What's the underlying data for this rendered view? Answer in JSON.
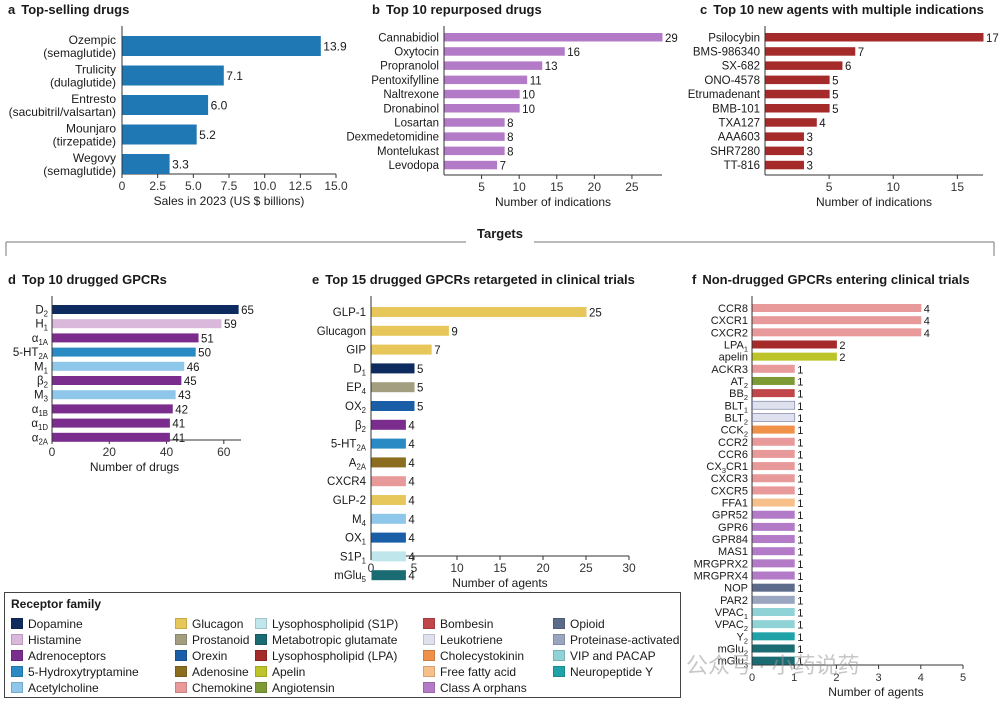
{
  "divider_title": "Targets",
  "chart_data": [
    {
      "id": "a",
      "type": "bar",
      "orientation": "horizontal",
      "letter": "a",
      "title": "Top-selling drugs",
      "categories": [
        [
          "Ozempic",
          "(semaglutide)"
        ],
        [
          "Trulicity",
          "(dulaglutide)"
        ],
        [
          "Entresto",
          "(sacubitril/valsartan)"
        ],
        [
          "Mounjaro",
          "(tirzepatide)"
        ],
        [
          "Wegovy",
          "(semaglutide)"
        ]
      ],
      "values": [
        13.9,
        7.1,
        6.0,
        5.2,
        3.3
      ],
      "value_labels": [
        "13.9",
        "7.1",
        "6.0",
        "5.2",
        "3.3"
      ],
      "colors": [
        "#1f78b4",
        "#1f78b4",
        "#1f78b4",
        "#1f78b4",
        "#1f78b4"
      ],
      "xlabel": "Sales in 2023 (US $ billions)",
      "xlim": [
        0,
        15
      ],
      "xticks": [
        "0",
        "2.5",
        "5.0",
        "7.5",
        "10.0",
        "12.5",
        "15.0"
      ]
    },
    {
      "id": "b",
      "type": "bar",
      "orientation": "horizontal",
      "letter": "b",
      "title": "Top 10 repurposed drugs",
      "categories": [
        [
          "Cannabidiol"
        ],
        [
          "Oxytocin"
        ],
        [
          "Propranolol"
        ],
        [
          "Pentoxifylline"
        ],
        [
          "Naltrexone"
        ],
        [
          "Dronabinol"
        ],
        [
          "Losartan"
        ],
        [
          "Dexmedetomidine"
        ],
        [
          "Montelukast"
        ],
        [
          "Levodopa"
        ]
      ],
      "values": [
        29,
        16,
        13,
        11,
        10,
        10,
        8,
        8,
        8,
        7
      ],
      "value_labels": [
        "29",
        "16",
        "13",
        "11",
        "10",
        "10",
        "8",
        "8",
        "8",
        "7"
      ],
      "colors": [
        "#b37bc7",
        "#b37bc7",
        "#b37bc7",
        "#b37bc7",
        "#b37bc7",
        "#b37bc7",
        "#b37bc7",
        "#b37bc7",
        "#b37bc7",
        "#b37bc7"
      ],
      "xlabel": "Number of indications",
      "xlim": [
        0,
        29
      ],
      "xticks": [
        "5",
        "10",
        "15",
        "20",
        "25"
      ]
    },
    {
      "id": "c",
      "type": "bar",
      "orientation": "horizontal",
      "letter": "c",
      "title": "Top 10 new agents with multiple indications",
      "categories": [
        [
          "Psilocybin"
        ],
        [
          "BMS-986340"
        ],
        [
          "SX-682"
        ],
        [
          "ONO-4578"
        ],
        [
          "Etrumadenant"
        ],
        [
          "BMB-101"
        ],
        [
          "TXA127"
        ],
        [
          "AAA603"
        ],
        [
          "SHR7280"
        ],
        [
          "TT-816"
        ]
      ],
      "values": [
        17,
        7,
        6,
        5,
        5,
        5,
        4,
        3,
        3,
        3
      ],
      "value_labels": [
        "17",
        "7",
        "6",
        "5",
        "5",
        "5",
        "4",
        "3",
        "3",
        "3"
      ],
      "colors": [
        "#a52a2a",
        "#a52a2a",
        "#a52a2a",
        "#a52a2a",
        "#a52a2a",
        "#a52a2a",
        "#a52a2a",
        "#a52a2a",
        "#a52a2a",
        "#a52a2a"
      ],
      "xlabel": "Number of indications",
      "xlim": [
        0,
        17
      ],
      "xticks": [
        "5",
        "10",
        "15"
      ]
    },
    {
      "id": "d",
      "type": "bar",
      "orientation": "horizontal",
      "letter": "d",
      "title": "Top 10 drugged GPCRs",
      "categories": [
        [
          "D2"
        ],
        [
          "H1"
        ],
        [
          "α1A"
        ],
        [
          "5-HT2A"
        ],
        [
          "M1"
        ],
        [
          "β2"
        ],
        [
          "M3"
        ],
        [
          "α1B"
        ],
        [
          "α1D"
        ],
        [
          "α2A"
        ]
      ],
      "values": [
        65,
        59,
        51,
        50,
        46,
        45,
        43,
        42,
        41,
        41
      ],
      "value_labels": [
        "65",
        "59",
        "51",
        "50",
        "46",
        "45",
        "43",
        "42",
        "41",
        "41"
      ],
      "colors": [
        "#0d2b5e",
        "#d9b8dc",
        "#7b2d8e",
        "#2a8ac4",
        "#8ec7ea",
        "#7b2d8e",
        "#8ec7ea",
        "#7b2d8e",
        "#7b2d8e",
        "#7b2d8e"
      ],
      "xlabel": "Number of drugs",
      "xlim": [
        0,
        66
      ],
      "xticks": [
        "0",
        "20",
        "40",
        "60"
      ]
    },
    {
      "id": "e",
      "type": "bar",
      "orientation": "horizontal",
      "letter": "e",
      "title": "Top 15 drugged GPCRs retargeted in clinical trials",
      "categories": [
        [
          "GLP-1"
        ],
        [
          "Glucagon"
        ],
        [
          "GIP"
        ],
        [
          "D1"
        ],
        [
          "EP4"
        ],
        [
          "OX2"
        ],
        [
          "β2"
        ],
        [
          "5-HT2A"
        ],
        [
          "A2A"
        ],
        [
          "CXCR4"
        ],
        [
          "GLP-2"
        ],
        [
          "M4"
        ],
        [
          "OX1"
        ],
        [
          "S1P1"
        ],
        [
          "mGlu5"
        ]
      ],
      "values": [
        25,
        9,
        7,
        5,
        5,
        5,
        4,
        4,
        4,
        4,
        4,
        4,
        4,
        4,
        4
      ],
      "value_labels": [
        "25",
        "9",
        "7",
        "5",
        "5",
        "5",
        "4",
        "4",
        "4",
        "4",
        "4",
        "4",
        "4",
        "4",
        "4"
      ],
      "colors": [
        "#e8c75a",
        "#e8c75a",
        "#e8c75a",
        "#0d2b5e",
        "#a39e7f",
        "#1a5ea8",
        "#7b2d8e",
        "#2a8ac4",
        "#8a6d1e",
        "#e89a9a",
        "#e8c75a",
        "#8ec7ea",
        "#1a5ea8",
        "#bfe6ea",
        "#1a6b72"
      ],
      "xlabel": "Number of agents",
      "xlim": [
        0,
        30
      ],
      "xticks": [
        "0",
        "5",
        "10",
        "15",
        "20",
        "25",
        "30"
      ]
    },
    {
      "id": "f",
      "type": "bar",
      "orientation": "horizontal",
      "letter": "f",
      "title": "Non-drugged GPCRs entering clinical trials",
      "categories": [
        [
          "CCR8"
        ],
        [
          "CXCR1"
        ],
        [
          "CXCR2"
        ],
        [
          "LPA1"
        ],
        [
          "apelin"
        ],
        [
          "ACKR3"
        ],
        [
          "AT2"
        ],
        [
          "BB2"
        ],
        [
          "BLT1"
        ],
        [
          "BLT2"
        ],
        [
          "CCK2"
        ],
        [
          "CCR2"
        ],
        [
          "CCR6"
        ],
        [
          "CX3CR1"
        ],
        [
          "CXCR3"
        ],
        [
          "CXCR5"
        ],
        [
          "FFA1"
        ],
        [
          "GPR52"
        ],
        [
          "GPR6"
        ],
        [
          "GPR84"
        ],
        [
          "MAS1"
        ],
        [
          "MRGPRX2"
        ],
        [
          "MRGPRX4"
        ],
        [
          "NOP"
        ],
        [
          "PAR2"
        ],
        [
          "VPAC1"
        ],
        [
          "VPAC2"
        ],
        [
          "Y2"
        ],
        [
          "mGlu2"
        ],
        [
          "mGlu3"
        ]
      ],
      "values": [
        4,
        4,
        4,
        2,
        2,
        1,
        1,
        1,
        1,
        1,
        1,
        1,
        1,
        1,
        1,
        1,
        1,
        1,
        1,
        1,
        1,
        1,
        1,
        1,
        1,
        1,
        1,
        1,
        1,
        1
      ],
      "value_labels": [
        "4",
        "4",
        "4",
        "2",
        "2",
        "1",
        "1",
        "1",
        "1",
        "1",
        "1",
        "1",
        "1",
        "1",
        "1",
        "1",
        "1",
        "1",
        "1",
        "1",
        "1",
        "1",
        "1",
        "1",
        "1",
        "1",
        "1",
        "1",
        "1",
        "1"
      ],
      "colors": [
        "#e89a9a",
        "#e89a9a",
        "#e89a9a",
        "#a52a2a",
        "#bcc42a",
        "#e89a9a",
        "#7d9a35",
        "#c0464a",
        "#dfe2ee",
        "#dfe2ee",
        "#f0914a",
        "#e89a9a",
        "#e89a9a",
        "#e89a9a",
        "#e89a9a",
        "#e89a9a",
        "#f7c08a",
        "#b37bc7",
        "#b37bc7",
        "#b37bc7",
        "#b37bc7",
        "#b37bc7",
        "#b37bc7",
        "#5d6b8a",
        "#9aa6bf",
        "#8fd3d6",
        "#8fd3d6",
        "#1fa3a8",
        "#1a6b72",
        "#1a6b72"
      ],
      "xlabel": "Number of agents",
      "xlim": [
        0,
        5
      ],
      "xticks": [
        "0",
        "1",
        "2",
        "3",
        "4",
        "5"
      ]
    }
  ],
  "legend": {
    "title": "Receptor family",
    "items": [
      {
        "label": "Dopamine",
        "color": "#0d2b5e"
      },
      {
        "label": "Histamine",
        "color": "#d9b8dc"
      },
      {
        "label": "Adrenoceptors",
        "color": "#7b2d8e"
      },
      {
        "label": "5-Hydroxytryptamine",
        "color": "#2a8ac4"
      },
      {
        "label": "Acetylcholine",
        "color": "#8ec7ea"
      },
      {
        "label": "Glucagon",
        "color": "#e8c75a"
      },
      {
        "label": "Prostanoid",
        "color": "#a39e7f"
      },
      {
        "label": "Orexin",
        "color": "#1a5ea8"
      },
      {
        "label": "Adenosine",
        "color": "#8a6d1e"
      },
      {
        "label": "Chemokine",
        "color": "#e89a9a"
      },
      {
        "label": "Lysophospholipid (S1P)",
        "color": "#bfe6ea"
      },
      {
        "label": "Metabotropic glutamate",
        "color": "#1a6b72"
      },
      {
        "label": "Lysophospholipid (LPA)",
        "color": "#a52a2a"
      },
      {
        "label": "Apelin",
        "color": "#bcc42a"
      },
      {
        "label": "Angiotensin",
        "color": "#7d9a35"
      },
      {
        "label": "Bombesin",
        "color": "#c0464a"
      },
      {
        "label": "Leukotriene",
        "color": "#dfe2ee"
      },
      {
        "label": "Cholecystokinin",
        "color": "#f0914a"
      },
      {
        "label": "Free fatty acid",
        "color": "#f7c08a"
      },
      {
        "label": "Class A orphans",
        "color": "#b37bc7"
      },
      {
        "label": "Opioid",
        "color": "#5d6b8a"
      },
      {
        "label": "Proteinase-activated",
        "color": "#9aa6bf"
      },
      {
        "label": "VIP and PACAP",
        "color": "#8fd3d6"
      },
      {
        "label": "Neuropeptide Y",
        "color": "#1fa3a8"
      }
    ]
  },
  "watermark": "公众号 · 小药说药"
}
